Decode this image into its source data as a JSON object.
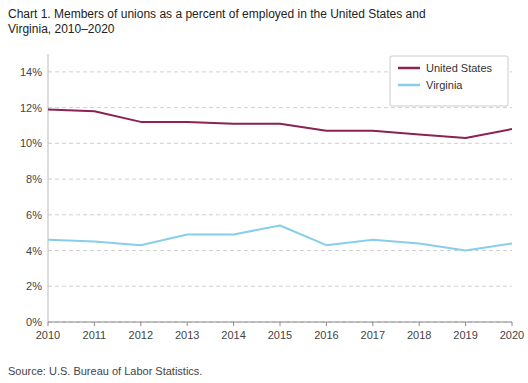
{
  "chart_data": {
    "type": "line",
    "title": "Chart 1. Members of unions as a percent of employed in the United States and\nVirginia, 2010–2020",
    "source": "Source: U.S. Bureau of Labor Statistics.",
    "x": [
      2010,
      2011,
      2012,
      2013,
      2014,
      2015,
      2016,
      2017,
      2018,
      2019,
      2020
    ],
    "series": [
      {
        "name": "United States",
        "color": "#8b2252",
        "values": [
          11.9,
          11.8,
          11.2,
          11.2,
          11.1,
          11.1,
          10.7,
          10.7,
          10.5,
          10.3,
          10.8
        ]
      },
      {
        "name": "Virginia",
        "color": "#87ceeb",
        "values": [
          4.6,
          4.5,
          4.3,
          4.9,
          4.9,
          5.4,
          4.3,
          4.6,
          4.4,
          4.0,
          4.4
        ]
      }
    ],
    "xlim": [
      2010,
      2020
    ],
    "xticks": [
      2010,
      2011,
      2012,
      2013,
      2014,
      2015,
      2016,
      2017,
      2018,
      2019,
      2020
    ],
    "ylim": [
      0,
      15
    ],
    "yticks": [
      {
        "value": 0,
        "label": "0%"
      },
      {
        "value": 2,
        "label": "2%"
      },
      {
        "value": 4,
        "label": "4%"
      },
      {
        "value": 6,
        "label": "6%"
      },
      {
        "value": 8,
        "label": "8%"
      },
      {
        "value": 10,
        "label": "10%"
      },
      {
        "value": 12,
        "label": "12%"
      },
      {
        "value": 14,
        "label": "14%"
      }
    ],
    "grid": true,
    "legend": "upper right"
  }
}
